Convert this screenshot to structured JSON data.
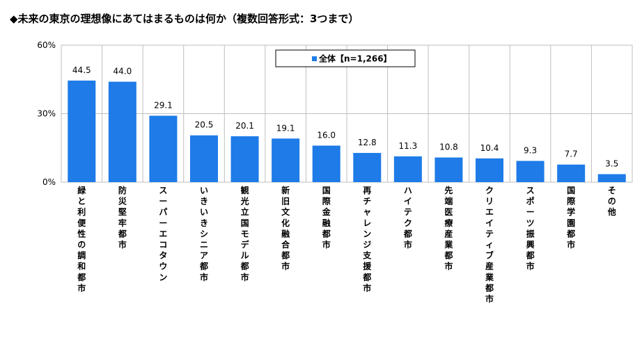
{
  "title": "◆未来の東京の理想像にあてはまるものは何か（複数回答形式：3つまで）",
  "colors": {
    "bar": "#1e7be8",
    "axis": "#000000",
    "grid": "#bfbfbf"
  },
  "chart_data": {
    "type": "bar",
    "title": "◆未来の東京の理想像にあてはまるものは何か（複数回答形式：3つまで）",
    "categories": [
      "緑と利便性の調和都市",
      "防災堅牢都市",
      "スーパーエコタウン",
      "いきいきシニア都市",
      "観光立国モデル都市",
      "新旧文化融合都市",
      "国際金融都市",
      "再チャレンジ支援都市",
      "ハイテク都市",
      "先端医療産業都市",
      "クリエイティブ産業都市",
      "スポーツ振興都市",
      "国際学園都市",
      "その他"
    ],
    "series": [
      {
        "name": "全体【n=1,266】",
        "values": [
          44.5,
          44.0,
          29.1,
          20.5,
          20.1,
          19.1,
          16.0,
          12.8,
          11.3,
          10.8,
          10.4,
          9.3,
          7.7,
          3.5
        ]
      }
    ],
    "value_labels": [
      "44.5",
      "44.0",
      "29.1",
      "20.5",
      "20.1",
      "19.1",
      "16.0",
      "12.8",
      "11.3",
      "10.8",
      "10.4",
      "9.3",
      "7.7",
      "3.5"
    ],
    "ylim": [
      0,
      60
    ],
    "yticks": [
      0,
      30,
      60
    ],
    "ytick_labels": [
      "0%",
      "30%",
      "60%"
    ],
    "xlabel": "",
    "ylabel": "",
    "grid": true,
    "legend": "top-center"
  }
}
